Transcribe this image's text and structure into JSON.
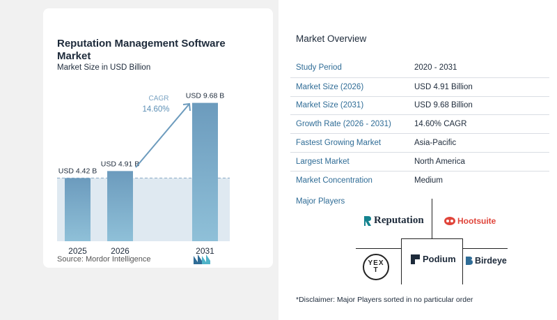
{
  "chart": {
    "title": "Reputation Management Software Market",
    "subtitle": "Market Size in USD Billion",
    "source": "Source:  Mordor Intelligence",
    "cagr_label": "CAGR",
    "cagr_value": "14.60%"
  },
  "chart_data": {
    "type": "bar",
    "categories": [
      "2025",
      "2026",
      "2031"
    ],
    "values": [
      4.42,
      4.91,
      9.68
    ],
    "data_labels": [
      "USD 4.42 B",
      "USD 4.91 B",
      "USD 9.68 B"
    ],
    "title": "Reputation Management Software Market",
    "subtitle": "Market Size in USD Billion",
    "xlabel": "",
    "ylabel": "",
    "ylim": [
      0,
      10
    ],
    "grid": false,
    "annotations": [
      "CAGR",
      "14.60%"
    ],
    "colors": {
      "bar": "#6c9bbd",
      "bar_light": "#8fc0d8",
      "reference_fill": "#dfe9f1",
      "arrow": "#6c9bbd"
    }
  },
  "overview": {
    "title": "Market Overview",
    "rows": [
      {
        "label": "Study Period",
        "value": "2020 - 2031"
      },
      {
        "label": "Market Size (2026)",
        "value": "USD 4.91 Billion"
      },
      {
        "label": "Market Size (2031)",
        "value": "USD 9.68 Billion"
      },
      {
        "label": "Growth Rate (2026 - 2031)",
        "value": "14.60% CAGR"
      },
      {
        "label": "Fastest Growing Market",
        "value": "Asia-Pacific"
      },
      {
        "label": "Largest Market",
        "value": "North America"
      },
      {
        "label": "Market Concentration",
        "value": "Medium"
      }
    ]
  },
  "players": {
    "title": "Major Players",
    "reputation": "Reputation",
    "hootsuite": "Hootsuite",
    "yext": "YEXT",
    "podium": "Podium",
    "birdeye": "Birdeye"
  },
  "disclaimer": "*Disclaimer: Major Players sorted in no particular order"
}
